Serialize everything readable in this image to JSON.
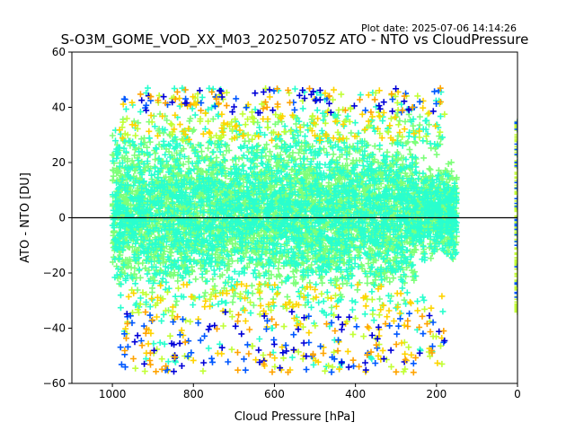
{
  "plot_date": "Plot date: 2025-07-06 14:14:26",
  "chart_data": {
    "type": "scatter",
    "title": "S-O3M_GOME_VOD_XX_M03_20250705Z ATO - NTO vs CloudPressure",
    "xlabel": "Cloud Pressure [hPa]",
    "ylabel": "ATO - NTO [DU]",
    "xlim": [
      1100,
      0
    ],
    "ylim": [
      -60,
      60
    ],
    "x_inverted": true,
    "xticks": [
      1000,
      800,
      600,
      400,
      200,
      0
    ],
    "yticks": [
      -60,
      -40,
      -20,
      0,
      20,
      40,
      60
    ],
    "xtick_labels": [
      "1000",
      "800",
      "600",
      "400",
      "200",
      "0"
    ],
    "ytick_labels": [
      "−60",
      "−40",
      "−20",
      "0",
      "20",
      "40",
      "60"
    ],
    "reference_line_y": 0,
    "marker": "plus",
    "colors": [
      "#7dff7a",
      "#29ffce",
      "#c1ff36",
      "#ffd400",
      "#0058ff",
      "#0000d8",
      "#ffa300"
    ],
    "point_cloud": {
      "x_range": [
        1000,
        150
      ],
      "core_y_range": [
        -25,
        30
      ],
      "outer_y_range": [
        -58,
        51
      ],
      "column_at_x0_y_range": [
        -35,
        35
      ]
    }
  }
}
